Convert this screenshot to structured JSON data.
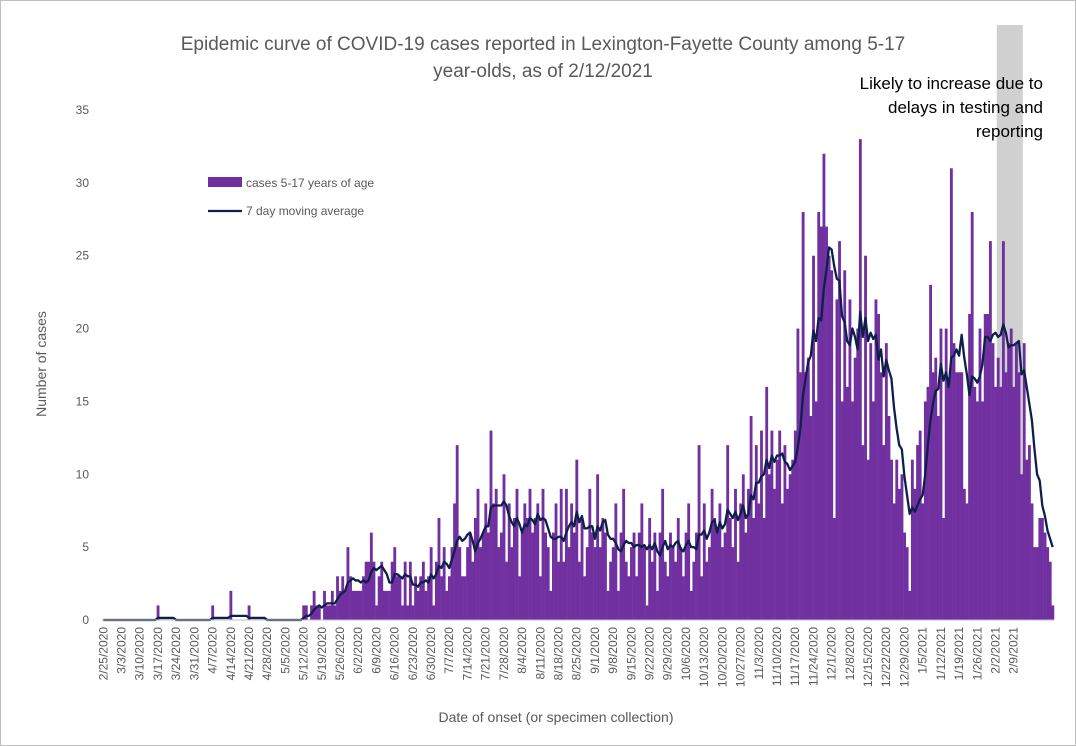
{
  "chart_data": {
    "type": "bar",
    "title_line1": "Epidemic curve of COVID-19 cases reported in Lexington-Fayette County among 5-17",
    "title_line2": "year-olds, as of 2/12/2021",
    "xlabel": "Date of onset (or specimen collection)",
    "ylabel": "Number of cases",
    "ylim": [
      0,
      35
    ],
    "yticks": [
      "0",
      "5",
      "10",
      "15",
      "20",
      "25",
      "30",
      "35"
    ],
    "x_tick_labels": [
      "2/25/2020",
      "3/3/2020",
      "3/10/2020",
      "3/17/2020",
      "3/24/2020",
      "3/31/2020",
      "4/7/2020",
      "4/14/2020",
      "4/21/2020",
      "4/28/2020",
      "5/5/2020",
      "5/12/2020",
      "5/19/2020",
      "5/26/2020",
      "6/2/2020",
      "6/9/2020",
      "6/16/2020",
      "6/23/2020",
      "6/30/2020",
      "7/7/2020",
      "7/14/2020",
      "7/21/2020",
      "7/28/2020",
      "8/4/2020",
      "8/11/2020",
      "8/18/2020",
      "8/25/2020",
      "9/1/2020",
      "9/8/2020",
      "9/15/2020",
      "9/22/2020",
      "9/29/2020",
      "10/6/2020",
      "10/13/2020",
      "10/20/2020",
      "10/27/2020",
      "11/3/2020",
      "11/10/2020",
      "11/17/2020",
      "11/24/2020",
      "12/1/2020",
      "12/8/2020",
      "12/15/2020",
      "12/22/2020",
      "12/29/2020",
      "1/5/2021",
      "1/12/2021",
      "1/19/2021",
      "1/26/2021",
      "2/2/2021",
      "2/9/2021"
    ],
    "x_start": "2/25/2020",
    "grid": false,
    "legend_position": "upper-left",
    "annotation": {
      "lines": [
        "Likely to increase due to",
        "delays in testing and",
        "reporting"
      ],
      "shaded_from": "2/3/2021",
      "shaded_to": "2/12/2021"
    },
    "series": [
      {
        "name": "cases 5-17 years of age",
        "kind": "bar",
        "color": "#7030a0",
        "values": [
          0,
          0,
          0,
          0,
          0,
          0,
          0,
          0,
          0,
          0,
          0,
          0,
          0,
          0,
          0,
          0,
          0,
          0,
          0,
          0,
          0,
          1,
          0,
          0,
          0,
          0,
          0,
          0,
          0,
          0,
          0,
          0,
          0,
          0,
          0,
          0,
          0,
          0,
          0,
          0,
          0,
          0,
          1,
          0,
          0,
          0,
          0,
          0,
          0,
          2,
          0,
          0,
          0,
          0,
          0,
          0,
          1,
          0,
          0,
          0,
          0,
          0,
          0,
          0,
          0,
          0,
          0,
          0,
          0,
          0,
          0,
          0,
          0,
          0,
          0,
          0,
          0,
          1,
          1,
          0,
          1,
          2,
          1,
          1,
          0,
          2,
          1,
          1,
          2,
          1,
          3,
          2,
          3,
          2,
          5,
          3,
          2,
          2,
          2,
          2,
          3,
          4,
          4,
          6,
          4,
          1,
          3,
          4,
          2,
          2,
          2,
          4,
          5,
          3,
          3,
          1,
          4,
          1,
          4,
          1,
          3,
          2,
          3,
          4,
          2,
          3,
          5,
          1,
          4,
          7,
          3,
          5,
          2,
          3,
          5,
          8,
          12,
          5,
          3,
          3,
          5,
          6,
          4,
          7,
          9,
          5,
          6,
          8,
          6,
          13,
          8,
          9,
          5,
          6,
          10,
          4,
          8,
          5,
          7,
          9,
          3,
          6,
          8,
          7,
          9,
          6,
          7,
          8,
          3,
          9,
          6,
          5,
          2,
          6,
          8,
          4,
          9,
          4,
          9,
          5,
          8,
          6,
          11,
          4,
          7,
          3,
          5,
          9,
          6,
          5,
          10,
          5,
          7,
          6,
          2,
          4,
          5,
          8,
          2,
          6,
          9,
          4,
          3,
          5,
          6,
          3,
          6,
          8,
          5,
          1,
          7,
          4,
          6,
          2,
          6,
          9,
          4,
          3,
          6,
          5,
          4,
          7,
          5,
          3,
          6,
          8,
          2,
          4,
          6,
          12,
          3,
          8,
          4,
          5,
          9,
          7,
          6,
          8,
          5,
          6,
          12,
          7,
          5,
          9,
          4,
          8,
          10,
          6,
          9,
          14,
          7,
          12,
          8,
          13,
          7,
          16,
          10,
          13,
          9,
          11,
          13,
          8,
          12,
          9,
          10,
          11,
          13,
          20,
          17,
          28,
          17,
          18,
          14,
          25,
          15,
          28,
          27,
          32,
          27,
          25,
          24,
          7,
          22,
          26,
          15,
          24,
          16,
          22,
          15,
          18,
          20,
          33,
          12,
          25,
          11,
          19,
          15,
          22,
          21,
          17,
          12,
          19,
          14,
          11,
          8,
          11,
          9,
          10,
          6,
          5,
          2,
          11,
          9,
          12,
          13,
          8,
          15,
          16,
          23,
          17,
          18,
          14,
          20,
          7,
          20,
          16,
          31,
          19,
          17,
          17,
          17,
          9,
          8,
          21,
          28,
          16,
          15,
          20,
          15,
          21,
          21,
          26,
          19,
          16,
          18,
          16,
          26,
          17,
          19,
          20,
          16,
          19,
          17,
          10,
          19,
          11,
          12,
          8,
          5,
          5,
          7,
          7,
          6,
          5,
          4,
          1
        ]
      },
      {
        "name": "7 day moving average",
        "kind": "line",
        "color": "#0f1f4b",
        "values": []
      }
    ]
  }
}
